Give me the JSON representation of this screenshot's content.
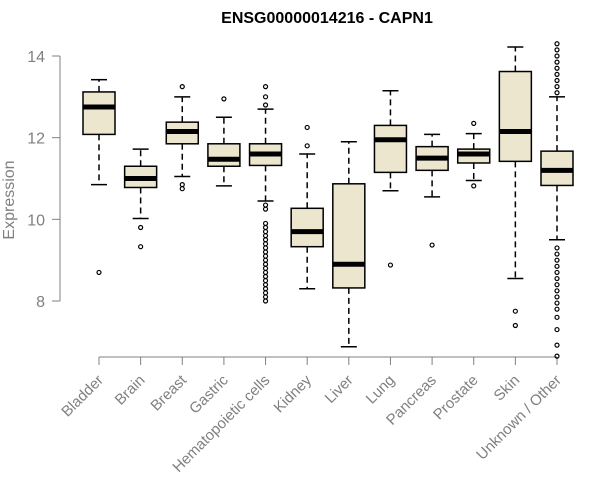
{
  "chart_data": {
    "type": "box",
    "title": "ENSG00000014216 - CAPN1",
    "xlabel": "",
    "ylabel": "Expression",
    "ylim": [
      6.6,
      14.3
    ],
    "yticks": [
      8,
      10,
      12,
      14
    ],
    "categories": [
      "Bladder",
      "Brain",
      "Breast",
      "Gastric",
      "Hematopoietic cells",
      "Kidney",
      "Liver",
      "Lung",
      "Pancreas",
      "Prostate",
      "Skin",
      "Unknown / Other"
    ],
    "boxes": [
      {
        "name": "Bladder",
        "whisker_low": 10.85,
        "q1": 12.08,
        "median": 12.75,
        "q3": 13.12,
        "whisker_high": 13.42,
        "outliers": [
          8.7
        ]
      },
      {
        "name": "Brain",
        "whisker_low": 10.02,
        "q1": 10.78,
        "median": 11.0,
        "q3": 11.3,
        "whisker_high": 11.72,
        "outliers": [
          9.8,
          9.33
        ]
      },
      {
        "name": "Breast",
        "whisker_low": 11.05,
        "q1": 11.85,
        "median": 12.15,
        "q3": 12.38,
        "whisker_high": 13.0,
        "outliers": [
          13.25,
          10.85,
          10.75
        ]
      },
      {
        "name": "Gastric",
        "whisker_low": 10.82,
        "q1": 11.3,
        "median": 11.47,
        "q3": 11.85,
        "whisker_high": 12.5,
        "outliers": [
          12.95
        ]
      },
      {
        "name": "Hematopoietic cells",
        "whisker_low": 10.45,
        "q1": 11.32,
        "median": 11.6,
        "q3": 11.85,
        "whisker_high": 12.7,
        "outliers": [
          13.25,
          13.0,
          12.8,
          10.35,
          10.25,
          9.9,
          9.8,
          9.7,
          9.6,
          9.5,
          9.4,
          9.3,
          9.2,
          9.1,
          9.0,
          8.9,
          8.8,
          8.7,
          8.6,
          8.5,
          8.4,
          8.3,
          8.2,
          8.1,
          8.0
        ]
      },
      {
        "name": "Kidney",
        "whisker_low": 8.3,
        "q1": 9.33,
        "median": 9.7,
        "q3": 10.27,
        "whisker_high": 11.6,
        "outliers": [
          12.25,
          11.8
        ]
      },
      {
        "name": "Liver",
        "whisker_low": 6.88,
        "q1": 8.32,
        "median": 8.9,
        "q3": 10.87,
        "whisker_high": 11.9,
        "outliers": []
      },
      {
        "name": "Lung",
        "whisker_low": 10.7,
        "q1": 11.15,
        "median": 11.95,
        "q3": 12.3,
        "whisker_high": 13.15,
        "outliers": [
          8.88
        ]
      },
      {
        "name": "Pancreas",
        "whisker_low": 10.55,
        "q1": 11.2,
        "median": 11.5,
        "q3": 11.78,
        "whisker_high": 12.08,
        "outliers": [
          9.37
        ]
      },
      {
        "name": "Prostate",
        "whisker_low": 10.95,
        "q1": 11.38,
        "median": 11.6,
        "q3": 11.72,
        "whisker_high": 12.1,
        "outliers": [
          12.35,
          10.82
        ]
      },
      {
        "name": "Skin",
        "whisker_low": 8.55,
        "q1": 11.42,
        "median": 12.15,
        "q3": 13.62,
        "whisker_high": 14.22,
        "outliers": [
          7.75,
          7.4
        ]
      },
      {
        "name": "Unknown / Other",
        "whisker_low": 9.5,
        "q1": 10.83,
        "median": 11.2,
        "q3": 11.67,
        "whisker_high": 13.0,
        "outliers": [
          14.3,
          14.15,
          14.0,
          13.85,
          13.7,
          13.55,
          13.4,
          13.25,
          13.1,
          9.3,
          9.15,
          9.0,
          8.85,
          8.7,
          8.55,
          8.4,
          8.25,
          8.1,
          7.95,
          7.8,
          7.6,
          7.3,
          6.92,
          6.65
        ]
      }
    ],
    "box_fill": "#ede6cf",
    "box_stroke": "#000000",
    "axis_color": "#808080",
    "grid": false,
    "legend": "none"
  }
}
